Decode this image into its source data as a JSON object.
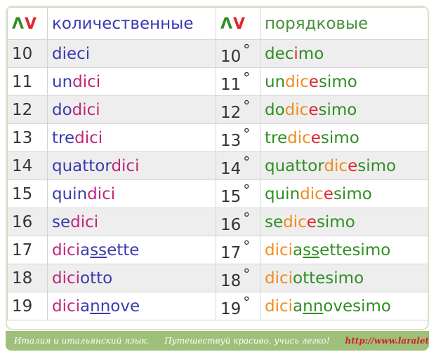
{
  "header": {
    "symbol_1": "Λ",
    "symbol_2": "V",
    "cardinal_title": "количественные",
    "ordinal_title": "порядковые"
  },
  "rows": [
    {
      "num": "10",
      "cardinal": [
        [
          "dieci",
          "b"
        ]
      ],
      "ord_num": "10",
      "ordinal": [
        [
          "dec",
          "g"
        ],
        [
          "i",
          "r"
        ],
        [
          "mo",
          "g"
        ]
      ]
    },
    {
      "num": "11",
      "cardinal": [
        [
          "un",
          "b"
        ],
        [
          "dici",
          "m"
        ]
      ],
      "ord_num": "11",
      "ordinal": [
        [
          "un",
          "g"
        ],
        [
          "dic",
          "o"
        ],
        [
          "e",
          "r"
        ],
        [
          "simo",
          "g"
        ]
      ]
    },
    {
      "num": "12",
      "cardinal": [
        [
          "do",
          "b"
        ],
        [
          "dici",
          "m"
        ]
      ],
      "ord_num": "12",
      "ordinal": [
        [
          "do",
          "g"
        ],
        [
          "dic",
          "o"
        ],
        [
          "e",
          "r"
        ],
        [
          "simo",
          "g"
        ]
      ]
    },
    {
      "num": "13",
      "cardinal": [
        [
          "tre",
          "b"
        ],
        [
          "dici",
          "m"
        ]
      ],
      "ord_num": "13",
      "ordinal": [
        [
          "tre",
          "g"
        ],
        [
          "dic",
          "o"
        ],
        [
          "e",
          "r"
        ],
        [
          "simo",
          "g"
        ]
      ]
    },
    {
      "num": "14",
      "cardinal": [
        [
          "quattor",
          "b"
        ],
        [
          "dici",
          "m"
        ]
      ],
      "ord_num": "14",
      "ordinal": [
        [
          "quattor",
          "g"
        ],
        [
          "dic",
          "o"
        ],
        [
          "e",
          "r"
        ],
        [
          "simo",
          "g"
        ]
      ]
    },
    {
      "num": "15",
      "cardinal": [
        [
          "quin",
          "b"
        ],
        [
          "dici",
          "m"
        ]
      ],
      "ord_num": "15",
      "ordinal": [
        [
          "quin",
          "g"
        ],
        [
          "dic",
          "o"
        ],
        [
          "e",
          "r"
        ],
        [
          "simo",
          "g"
        ]
      ]
    },
    {
      "num": "16",
      "cardinal": [
        [
          "se",
          "b"
        ],
        [
          "dici",
          "m"
        ]
      ],
      "ord_num": "16",
      "ordinal": [
        [
          "se",
          "g"
        ],
        [
          "dic",
          "o"
        ],
        [
          "e",
          "r"
        ],
        [
          "simo",
          "g"
        ]
      ]
    },
    {
      "num": "17",
      "cardinal": [
        [
          "dici",
          "m"
        ],
        [
          "a",
          "b"
        ],
        [
          "ss",
          "bu"
        ],
        [
          "ette",
          "b"
        ]
      ],
      "ord_num": "17",
      "ordinal": [
        [
          "dici",
          "o"
        ],
        [
          "a",
          "g"
        ],
        [
          "ss",
          "gu"
        ],
        [
          "ettesimo",
          "g"
        ]
      ]
    },
    {
      "num": "18",
      "cardinal": [
        [
          "dici",
          "m"
        ],
        [
          "otto",
          "b"
        ]
      ],
      "ord_num": "18",
      "ordinal": [
        [
          "dici",
          "o"
        ],
        [
          "ottesimo",
          "g"
        ]
      ]
    },
    {
      "num": "19",
      "cardinal": [
        [
          "dici",
          "m"
        ],
        [
          "a",
          "b"
        ],
        [
          "nn",
          "bu"
        ],
        [
          "ove",
          "b"
        ]
      ],
      "ord_num": "19",
      "ordinal": [
        [
          "dici",
          "o"
        ],
        [
          "a",
          "g"
        ],
        [
          "nn",
          "gu"
        ],
        [
          "ovesimo",
          "g"
        ]
      ]
    }
  ],
  "degree_sign": "°",
  "footer": {
    "part1": "Италия и итальянский язык.",
    "part2": "Путешествуй красиво, учись легко!",
    "part3": "http://www.laraleto.ru"
  }
}
